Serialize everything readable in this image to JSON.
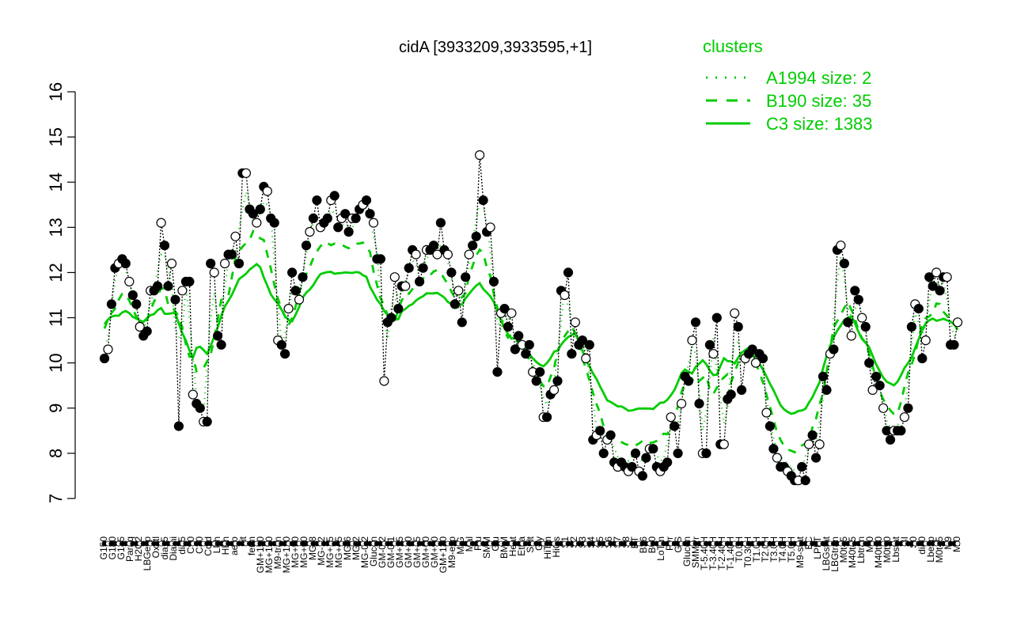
{
  "chart_data": {
    "type": "line",
    "title": "cidA [3933209,3933595,+1]",
    "ylim": [
      7,
      16
    ],
    "yticks": [
      7,
      8,
      9,
      10,
      11,
      12,
      13,
      14,
      15,
      16
    ],
    "xlabels_visible": [
      "G150",
      "G180",
      "G135",
      "Paraq",
      "H2O2",
      "LBGexp",
      "Oxctl",
      "dia15",
      "Diami",
      "dia5",
      "C90",
      "C30",
      "Cold",
      "LPh",
      "HPh",
      "aero",
      "nit",
      "ferm",
      "GM+150",
      "MG+150",
      "M9-tran",
      "MG+120",
      "MG+90",
      "MG+60",
      "MG-8",
      "MG-12",
      "MG+15",
      "MG+45",
      "MG-6",
      "MG-2",
      "MG-0.2",
      "Glucon",
      "GM-0.2",
      "GM-0.1",
      "GM+15",
      "GM+30",
      "GM+45",
      "GM+60",
      "GM+90",
      "GM+120",
      "M9-exp",
      "M/G",
      "Mal",
      "Fru",
      "SMM",
      "Glu",
      "BMM",
      "Heat",
      "Etha",
      "Salt",
      "Gly",
      "HiTm",
      "HiOs",
      "S1",
      "S2",
      "S3",
      "S4",
      "S5",
      "S6",
      "S7",
      "S8",
      "BT",
      "B36",
      "B60",
      "LoTm",
      "Pyr",
      "G/S",
      "Glucon",
      "SMMPr",
      "T-5.40H",
      "T-3.40H",
      "T-2.40H",
      "T-1.40H",
      "T0.0H",
      "T0.30H",
      "T1.0H",
      "T2.0H",
      "T3.0H",
      "T4.0H",
      "T5.0H",
      "M9-stat",
      "BC",
      "LPhT",
      "LBGstat",
      "LBGtran",
      "M0t45",
      "M40t45",
      "Lbtran",
      "Mt0",
      "M40t90",
      "M0t90",
      "Lbstat",
      "BI",
      "S0",
      "dia0",
      "Lbexp",
      "M0t45",
      "M9",
      "Mt0"
    ],
    "legend": {
      "title": "clusters",
      "entries": [
        {
          "label": "A1994 size: 2",
          "style": "dotted",
          "color": "#00cc00"
        },
        {
          "label": "B190 size: 35",
          "style": "dashed",
          "color": "#00cc00"
        },
        {
          "label": "C3 size: 1383",
          "style": "solid",
          "color": "#00cc00"
        }
      ],
      "position": "top-right"
    },
    "series": [
      {
        "style": "points",
        "color": "#000000",
        "values": [
          10.1,
          10.3,
          11.3,
          12.1,
          12.2,
          12.3,
          12.2,
          11.8,
          11.5,
          11.3,
          10.8,
          10.6,
          10.7,
          11.6,
          11.6,
          11.7,
          13.1,
          12.6,
          11.7,
          12.2,
          11.4,
          8.6,
          11.6,
          11.8,
          11.8,
          9.3,
          9.1,
          9.0,
          8.7,
          8.7,
          12.2,
          12.0,
          10.6,
          10.4,
          12.2,
          12.4,
          12.4,
          12.8,
          12.2,
          14.2,
          14.2,
          13.4,
          13.3,
          13.1,
          13.4,
          13.9,
          13.8,
          13.2,
          13.1,
          10.5,
          10.4,
          10.2,
          11.2,
          12.0,
          11.6,
          11.4,
          11.9,
          12.6,
          12.9,
          13.2,
          13.6,
          13.0,
          13.1,
          13.2,
          13.6,
          13.7,
          13.0,
          13.2,
          13.3,
          12.9,
          13.2,
          13.2,
          13.4,
          13.5,
          13.6,
          13.3,
          13.1,
          12.3,
          12.3,
          9.6,
          10.9,
          11.0,
          11.9,
          11.2,
          11.7,
          11.7,
          12.1,
          12.5,
          12.4,
          11.8,
          12.1,
          12.5,
          12.5,
          12.6,
          12.4,
          13.1,
          12.5,
          12.4,
          12.0,
          11.3,
          11.6,
          10.9,
          11.9,
          12.4,
          12.6,
          12.8,
          14.6,
          13.6,
          12.9,
          13.0,
          11.8,
          9.8,
          11.1,
          11.2,
          10.8,
          11.1,
          10.3,
          10.6,
          10.4,
          10.2,
          10.4,
          9.8,
          9.6,
          9.8,
          8.8,
          8.8,
          9.3,
          9.4,
          9.6,
          11.6,
          11.5,
          12.0,
          10.2,
          10.9,
          10.4,
          10.5,
          10.1,
          10.4,
          8.3,
          8.4,
          8.5,
          8.0,
          8.3,
          8.4,
          7.8,
          7.7,
          7.8,
          7.7,
          7.6,
          7.7,
          8.0,
          7.6,
          7.5,
          7.9,
          8.1,
          8.1,
          7.7,
          7.6,
          7.7,
          7.8,
          8.8,
          8.6,
          8.0,
          9.1,
          9.7,
          9.6,
          10.5,
          10.9,
          9.1,
          8.0,
          8.0,
          10.4,
          10.2,
          11.0,
          8.2,
          8.2,
          9.2,
          9.3,
          11.1,
          10.8,
          9.4,
          10.1,
          10.2,
          10.3,
          10.0,
          10.2,
          10.1,
          8.9,
          8.6,
          8.1,
          7.9,
          7.7,
          7.7,
          7.6,
          7.5,
          7.4,
          7.4,
          7.7,
          7.4,
          8.2,
          8.4,
          7.9,
          8.2,
          9.7,
          9.4,
          10.2,
          10.3,
          12.5,
          12.6,
          12.2,
          10.9,
          10.6,
          11.6,
          11.4,
          11.0,
          10.8,
          10.0,
          9.4,
          9.7,
          9.5,
          9.0,
          8.5,
          8.3,
          8.5,
          8.5,
          8.5,
          8.8,
          9.0,
          10.8,
          11.3,
          11.2,
          10.1,
          10.5,
          11.9,
          11.7,
          12.0,
          11.6,
          11.9,
          11.9,
          10.4,
          10.4,
          10.9
        ]
      }
    ]
  }
}
